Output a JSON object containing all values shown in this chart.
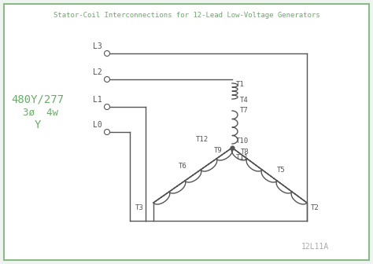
{
  "title": "Stator-Coil Interconnections for 12-Lead Low-Voltage Generators",
  "label_480": "480Y/277",
  "label_3ph": "3ø  4w",
  "label_Y": "Y",
  "bg_color": "#f0f4f0",
  "inner_bg": "#ffffff",
  "line_color": "#555555",
  "text_color": "#6aaa6a",
  "border_color": "#88bb88",
  "watermark": "12L11A",
  "fig_width": 4.74,
  "fig_height": 3.36,
  "dpi": 100
}
